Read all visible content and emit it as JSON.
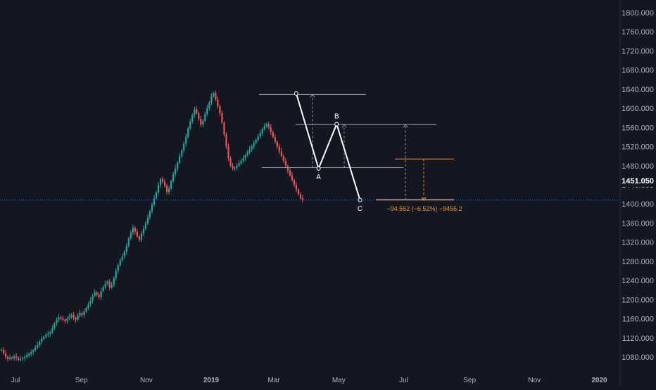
{
  "chart_data": {
    "type": "candlestick",
    "y_ticks": [
      "1800.000",
      "1760.000",
      "1720.000",
      "1680.000",
      "1640.000",
      "1600.000",
      "1560.000",
      "1520.000",
      "1480.000",
      "1440.000",
      "1400.000",
      "1360.000",
      "1320.000",
      "1280.000",
      "1240.000",
      "1200.000",
      "1160.000",
      "1120.000",
      "1080.000"
    ],
    "x_ticks": [
      "Jul",
      "Sep",
      "Nov",
      "2019",
      "Mar",
      "May",
      "Jul",
      "Sep",
      "Nov",
      "2020"
    ],
    "current_price": 1408,
    "price_label": "1451.050",
    "ylim": [
      1073,
      1813
    ],
    "grid": false,
    "pattern": {
      "points": [
        {
          "label": "",
          "date": "2019-03-22",
          "price": 1631
        },
        {
          "label": "A",
          "date": "2019-04-12",
          "price": 1474
        },
        {
          "label": "B",
          "date": "2019-04-29",
          "price": 1567
        },
        {
          "label": "C",
          "date": "2019-05-21",
          "price": 1408
        }
      ],
      "levels": [
        1629,
        1566,
        1476,
        1494,
        1408
      ]
    },
    "measure_label": "−94.562 (−6.52%) −9456.2",
    "series": [
      {
        "name": "",
        "values": [
          1095,
          1088,
          1080,
          1076,
          1079,
          1077,
          1081,
          1078,
          1074,
          1076,
          1078,
          1080,
          1083,
          1086,
          1090,
          1094,
          1100,
          1105,
          1112,
          1118,
          1122,
          1126,
          1128,
          1131,
          1140,
          1150,
          1158,
          1163,
          1160,
          1158,
          1155,
          1160,
          1164,
          1168,
          1162,
          1158,
          1166,
          1172,
          1168,
          1175,
          1182,
          1190,
          1198,
          1208,
          1215,
          1210,
          1205,
          1218,
          1226,
          1234,
          1238,
          1225,
          1230,
          1245,
          1260,
          1272,
          1282,
          1290,
          1300,
          1312,
          1328,
          1340,
          1350,
          1342,
          1332,
          1325,
          1338,
          1348,
          1360,
          1372,
          1385,
          1398,
          1412,
          1424,
          1440,
          1452,
          1446,
          1438,
          1425,
          1432,
          1448,
          1462,
          1474,
          1486,
          1500,
          1512,
          1526,
          1540,
          1558,
          1572,
          1586,
          1598,
          1590,
          1578,
          1566,
          1574,
          1588,
          1600,
          1612,
          1625,
          1632,
          1618,
          1604,
          1590,
          1570,
          1545,
          1520,
          1496,
          1480,
          1474,
          1476,
          1480,
          1485,
          1490,
          1496,
          1502,
          1508,
          1514,
          1520,
          1527,
          1534,
          1541,
          1548,
          1556,
          1563,
          1567,
          1560,
          1550,
          1540,
          1530,
          1520,
          1510,
          1500,
          1490,
          1480,
          1470,
          1460,
          1450,
          1440,
          1430,
          1420,
          1412,
          1408
        ]
      }
    ]
  }
}
